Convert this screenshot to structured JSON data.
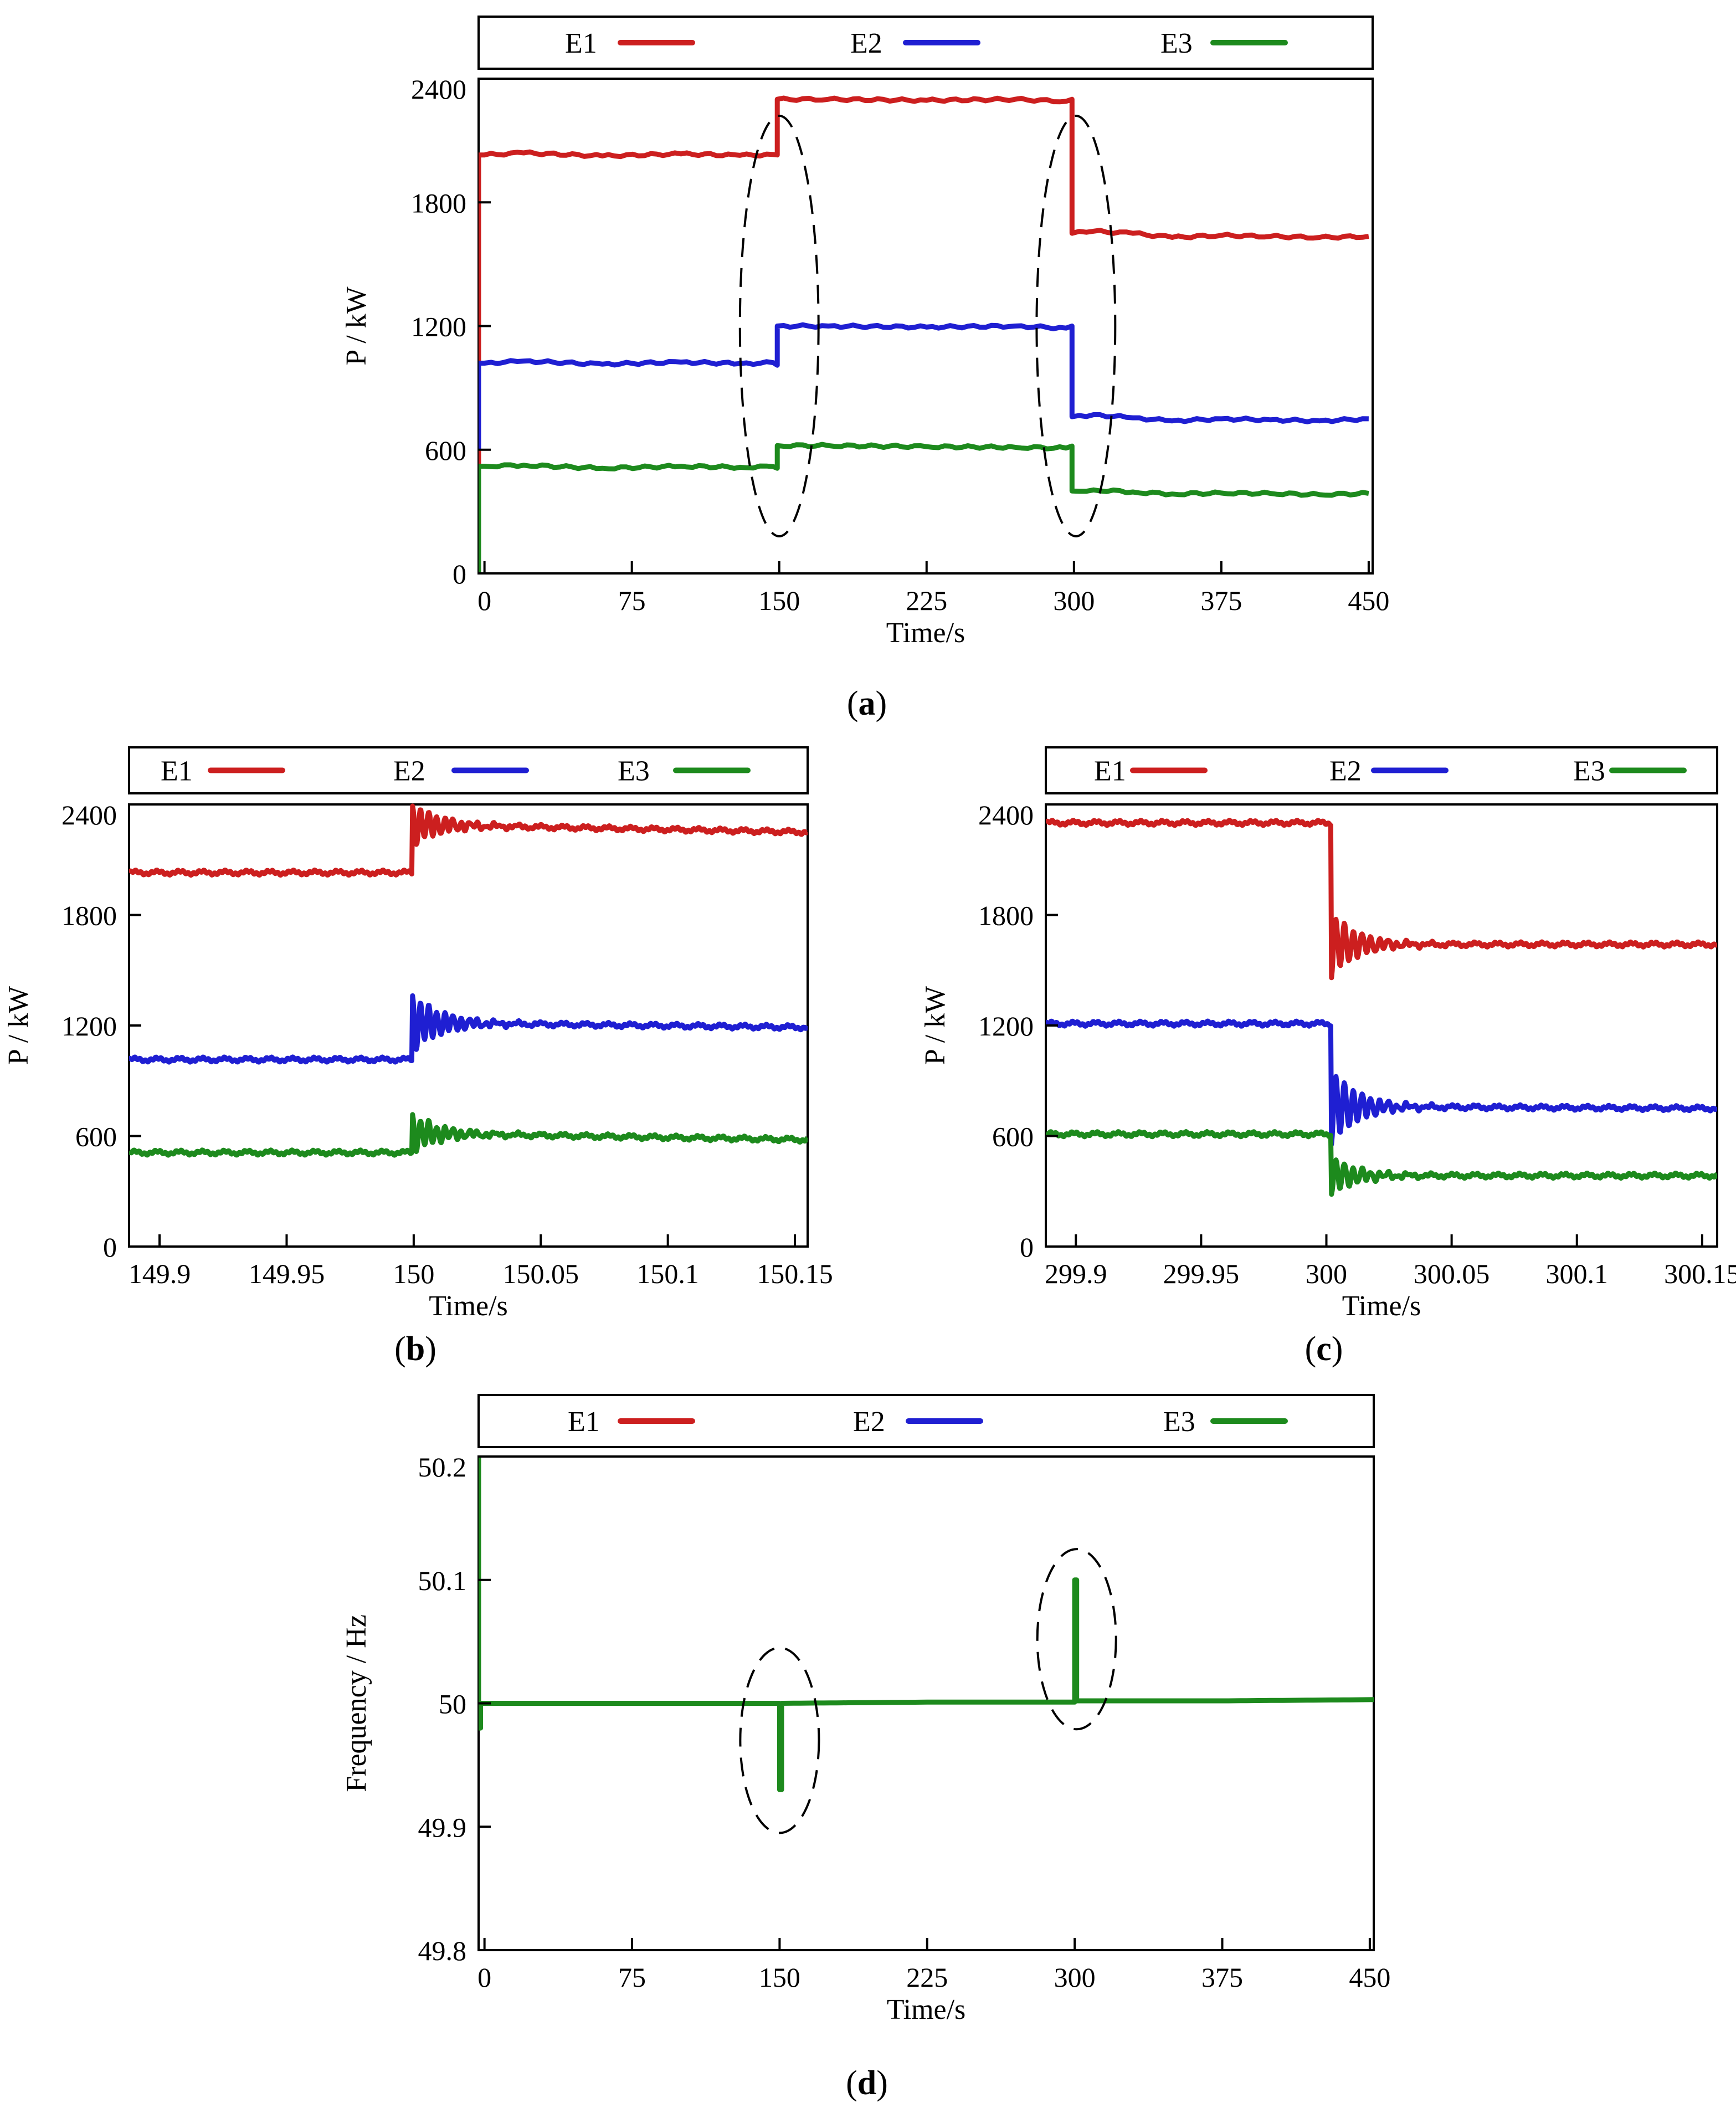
{
  "chart_data": [
    {
      "id": "a",
      "type": "line",
      "caption": "(a)",
      "legend": [
        "E1",
        "E2",
        "E3"
      ],
      "xlabel": "Time/s",
      "ylabel": "P / kW",
      "xlim": [
        -3,
        452
      ],
      "ylim": [
        0,
        2400
      ],
      "xticks": [
        0,
        75,
        150,
        225,
        300,
        375,
        450
      ],
      "xtick_labels": [
        "0",
        "75",
        "150",
        "225",
        "300",
        "375",
        "450"
      ],
      "yticks": [
        0,
        600,
        1200,
        1800,
        2400
      ],
      "ytick_labels": [
        "0",
        "600",
        "1200",
        "1800",
        "2400"
      ],
      "colors": {
        "E1": "#cc1f1f",
        "E2": "#1f1fd2",
        "E3": "#1d8a1d"
      },
      "series": [
        {
          "name": "E1",
          "x": [
            -3,
            -3,
            0,
            20,
            60,
            100,
            130,
            147,
            149,
            149,
            175,
            225,
            270,
            296,
            299,
            299,
            310,
            330,
            350,
            375,
            400,
            425,
            450
          ],
          "y": [
            0,
            2030,
            2030,
            2040,
            2025,
            2035,
            2028,
            2032,
            2030,
            2300,
            2300,
            2295,
            2300,
            2290,
            2300,
            1650,
            1660,
            1650,
            1630,
            1640,
            1635,
            1630,
            1635
          ]
        },
        {
          "name": "E2",
          "x": [
            -3,
            -3,
            0,
            20,
            60,
            100,
            130,
            147,
            149,
            149,
            175,
            225,
            270,
            296,
            299,
            299,
            310,
            330,
            350,
            375,
            400,
            425,
            450
          ],
          "y": [
            600,
            1020,
            1020,
            1030,
            1015,
            1025,
            1018,
            1022,
            1010,
            1200,
            1200,
            1195,
            1200,
            1190,
            1200,
            760,
            770,
            755,
            740,
            750,
            745,
            740,
            750
          ]
        },
        {
          "name": "E3",
          "x": [
            -3,
            -3,
            0,
            20,
            60,
            100,
            130,
            147,
            149,
            149,
            175,
            225,
            270,
            296,
            299,
            299,
            310,
            330,
            350,
            375,
            400,
            425,
            450
          ],
          "y": [
            0,
            520,
            520,
            525,
            510,
            520,
            515,
            518,
            510,
            620,
            620,
            615,
            612,
            608,
            618,
            400,
            405,
            395,
            385,
            390,
            388,
            382,
            388
          ]
        }
      ],
      "annotations": [
        {
          "type": "dashed-ellipse",
          "cx": 150,
          "cy": 1200,
          "rx": 20,
          "ry": 1020
        },
        {
          "type": "dashed-ellipse",
          "cx": 301,
          "cy": 1200,
          "rx": 20,
          "ry": 1020
        }
      ]
    },
    {
      "id": "b",
      "type": "line",
      "caption": "(b)",
      "legend": [
        "E1",
        "E2",
        "E3"
      ],
      "xlabel": "Time/s",
      "ylabel": "P / kW",
      "xlim": [
        149.888,
        150.155
      ],
      "ylim": [
        0,
        2400
      ],
      "xticks": [
        149.9,
        149.95,
        150,
        150.05,
        150.1,
        150.15
      ],
      "xtick_labels": [
        "149.9",
        "149.95",
        "150",
        "150.05",
        "150.1",
        "150.15"
      ],
      "yticks": [
        0,
        600,
        1200,
        1800,
        2400
      ],
      "ytick_labels": [
        "0",
        "600",
        "1200",
        "1800",
        "2400"
      ],
      "colors": {
        "E1": "#cc1f1f",
        "E2": "#1f1fd2",
        "E3": "#1d8a1d"
      },
      "series": [
        {
          "name": "E1",
          "base": 2030,
          "step": 2290,
          "step_at": 149.9995,
          "osc_amp": 110,
          "osc_decay": 0.012,
          "osc_period": 0.0032,
          "end": 2250
        },
        {
          "name": "E2",
          "base": 1015,
          "step": 1215,
          "step_at": 149.9995,
          "osc_amp": 150,
          "osc_decay": 0.012,
          "osc_period": 0.0032,
          "end": 1190
        },
        {
          "name": "E3",
          "base": 510,
          "step": 615,
          "step_at": 149.9995,
          "osc_amp": 100,
          "osc_decay": 0.012,
          "osc_period": 0.0032,
          "end": 580
        }
      ]
    },
    {
      "id": "c",
      "type": "line",
      "caption": "(c)",
      "legend": [
        "E1",
        "E2",
        "E3"
      ],
      "xlabel": "Time/s",
      "ylabel": "P / kW",
      "xlim": [
        299.888,
        300.156
      ],
      "ylim": [
        0,
        2400
      ],
      "xticks": [
        299.9,
        299.95,
        300,
        300.05,
        300.1,
        300.15
      ],
      "xtick_labels": [
        "299.9",
        "299.95",
        "300",
        "300.05",
        "300.1",
        "300.15"
      ],
      "yticks": [
        0,
        600,
        1200,
        1800,
        2400
      ],
      "ytick_labels": [
        "0",
        "600",
        "1200",
        "1800",
        "2400"
      ],
      "colors": {
        "E1": "#cc1f1f",
        "E2": "#1f1fd2",
        "E3": "#1d8a1d"
      },
      "series": [
        {
          "name": "E1",
          "base": 2300,
          "step": 1640,
          "step_at": 300.002,
          "osc_amp": 170,
          "osc_decay": 0.011,
          "osc_period": 0.0035,
          "end": 1640
        },
        {
          "name": "E2",
          "base": 1210,
          "step": 760,
          "step_at": 300.002,
          "osc_amp": 200,
          "osc_decay": 0.011,
          "osc_period": 0.0035,
          "end": 750
        },
        {
          "name": "E3",
          "base": 610,
          "step": 385,
          "step_at": 300.002,
          "osc_amp": 100,
          "osc_decay": 0.011,
          "osc_period": 0.0035,
          "end": 385
        }
      ]
    },
    {
      "id": "d",
      "type": "line",
      "caption": "(d)",
      "legend": [
        "E1",
        "E2",
        "E3"
      ],
      "xlabel": "Time/s",
      "ylabel": "Frequency /  Hz",
      "xlim": [
        -3,
        452
      ],
      "ylim": [
        49.8,
        50.2
      ],
      "xticks": [
        0,
        75,
        150,
        225,
        300,
        375,
        450
      ],
      "xtick_labels": [
        "0",
        "75",
        "150",
        "225",
        "300",
        "375",
        "450"
      ],
      "yticks": [
        49.8,
        49.9,
        50,
        50.1,
        50.2
      ],
      "ytick_labels": [
        "49.8",
        "49.9",
        "50",
        "50.1",
        "50.2"
      ],
      "colors": {
        "E1": "#cc1f1f",
        "E2": "#1f1fd2",
        "E3": "#1d8a1d"
      },
      "series": [
        {
          "name": "E3",
          "x": [
            -3,
            -3,
            -2,
            -2,
            -1,
            75,
            150,
            150,
            151,
            151,
            225,
            300,
            300,
            301,
            301,
            375,
            452
          ],
          "y": [
            50.2,
            49.98,
            49.98,
            50.0,
            50.0,
            50.0,
            50.0,
            49.93,
            49.93,
            50.0,
            50.001,
            50.001,
            50.1,
            50.1,
            50.002,
            50.002,
            50.003
          ]
        }
      ],
      "annotations": [
        {
          "type": "dashed-ellipse",
          "cx": 150,
          "cy": 49.97,
          "rx": 20,
          "ry": 0.075
        },
        {
          "type": "dashed-ellipse",
          "cx": 301,
          "cy": 50.052,
          "rx": 20,
          "ry": 0.073
        }
      ]
    }
  ]
}
